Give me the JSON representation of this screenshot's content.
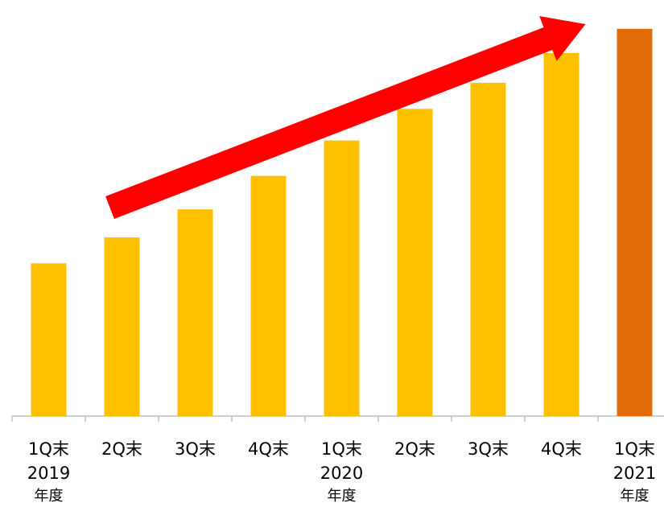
{
  "chart_data": {
    "type": "bar",
    "title": "",
    "xlabel": "",
    "ylabel": "",
    "categories": [
      "1Q末",
      "2Q末",
      "3Q末",
      "4Q末",
      "1Q末",
      "2Q末",
      "3Q末",
      "4Q末",
      "1Q末"
    ],
    "values": [
      41,
      48,
      55.5,
      64.5,
      74,
      82.5,
      89.5,
      97.5,
      104
    ],
    "ylim": [
      0,
      110
    ],
    "grid": false,
    "legend": "none",
    "bar_colors": [
      "#FFC000",
      "#FFC000",
      "#FFC000",
      "#FFC000",
      "#FFC000",
      "#FFC000",
      "#FFC000",
      "#FFC000",
      "#E36C0A"
    ],
    "year_groups": [
      {
        "start_index": 0,
        "year": "2019",
        "suffix": "年度"
      },
      {
        "start_index": 4,
        "year": "2020",
        "suffix": "年度"
      },
      {
        "start_index": 8,
        "year": "2021",
        "suffix": "年度"
      }
    ],
    "annotations": [
      {
        "type": "trend-arrow",
        "color": "#FF0000",
        "from_index": 1,
        "to_index": 7,
        "direction": "up"
      }
    ],
    "axis_color": "#BFBFBF"
  }
}
